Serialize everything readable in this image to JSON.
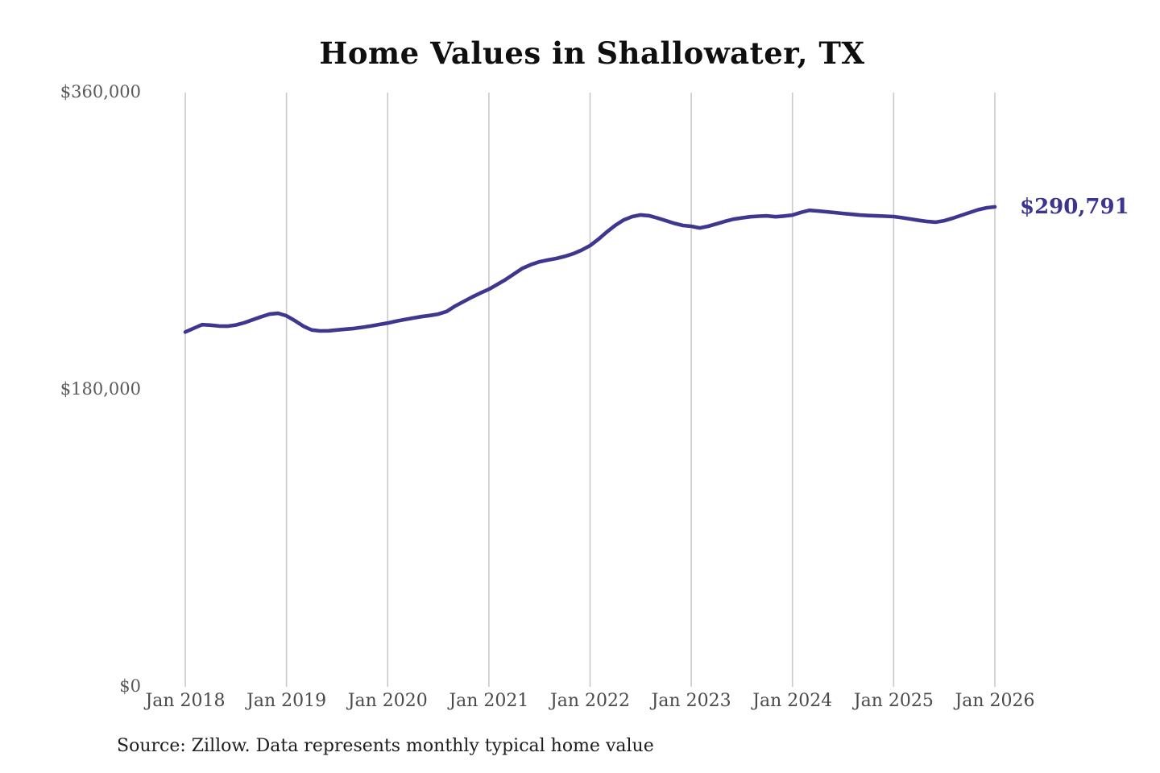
{
  "chart": {
    "title": "Home Values in Shallowater, TX",
    "latest_value_label": "$290,791",
    "source_note": "Source: Zillow. Data represents monthly typical home value",
    "colors": {
      "line": "#3e3790",
      "end_label": "#3b3490",
      "gridline": "#c9c9c9",
      "title": "#0f0f0f",
      "y_axis_label": "#5a5a5a",
      "x_axis_label": "#4a4a4a",
      "source_text": "#1d1d1d",
      "background": "#ffffff"
    }
  },
  "chart_data": {
    "type": "line",
    "title": "Home Values in Shallowater, TX",
    "xlabel": "",
    "ylabel": "",
    "ylim": [
      0,
      360000
    ],
    "grid": "vertical-only",
    "legend": "none",
    "source": "Zillow",
    "latest_point": {
      "month": "Jan 2026",
      "value": 290791,
      "label": "$290,791"
    },
    "y_ticks": [
      {
        "value": 360000,
        "label": "$360,000"
      },
      {
        "value": 180000,
        "label": "$180,000"
      },
      {
        "value": 0,
        "label": "$0"
      }
    ],
    "x_tick_labels": [
      "Jan 2018",
      "Jan 2019",
      "Jan 2020",
      "Jan 2021",
      "Jan 2022",
      "Jan 2023",
      "Jan 2024",
      "Jan 2025",
      "Jan 2026"
    ],
    "months": [
      "Jan 2018",
      "Feb 2018",
      "Mar 2018",
      "Apr 2018",
      "May 2018",
      "Jun 2018",
      "Jul 2018",
      "Aug 2018",
      "Sep 2018",
      "Oct 2018",
      "Nov 2018",
      "Dec 2018",
      "Jan 2019",
      "Feb 2019",
      "Mar 2019",
      "Apr 2019",
      "May 2019",
      "Jun 2019",
      "Jul 2019",
      "Aug 2019",
      "Sep 2019",
      "Oct 2019",
      "Nov 2019",
      "Dec 2019",
      "Jan 2020",
      "Feb 2020",
      "Mar 2020",
      "Apr 2020",
      "May 2020",
      "Jun 2020",
      "Jul 2020",
      "Aug 2020",
      "Sep 2020",
      "Oct 2020",
      "Nov 2020",
      "Dec 2020",
      "Jan 2021",
      "Feb 2021",
      "Mar 2021",
      "Apr 2021",
      "May 2021",
      "Jun 2021",
      "Jul 2021",
      "Aug 2021",
      "Sep 2021",
      "Oct 2021",
      "Nov 2021",
      "Dec 2021",
      "Jan 2022",
      "Feb 2022",
      "Mar 2022",
      "Apr 2022",
      "May 2022",
      "Jun 2022",
      "Jul 2022",
      "Aug 2022",
      "Sep 2022",
      "Oct 2022",
      "Nov 2022",
      "Dec 2022",
      "Jan 2023",
      "Feb 2023",
      "Mar 2023",
      "Apr 2023",
      "May 2023",
      "Jun 2023",
      "Jul 2023",
      "Aug 2023",
      "Sep 2023",
      "Oct 2023",
      "Nov 2023",
      "Dec 2023",
      "Jan 2024",
      "Feb 2024",
      "Mar 2024",
      "Apr 2024",
      "May 2024",
      "Jun 2024",
      "Jul 2024",
      "Aug 2024",
      "Sep 2024",
      "Oct 2024",
      "Nov 2024",
      "Dec 2024",
      "Jan 2025",
      "Feb 2025",
      "Mar 2025",
      "Apr 2025",
      "May 2025",
      "Jun 2025",
      "Jul 2025",
      "Aug 2025",
      "Sep 2025",
      "Oct 2025",
      "Nov 2025",
      "Dec 2025",
      "Jan 2026"
    ],
    "values": [
      215000,
      217200,
      219400,
      219100,
      218600,
      218500,
      219200,
      220600,
      222400,
      224200,
      225800,
      226300,
      224800,
      221800,
      218500,
      216200,
      215600,
      215700,
      216200,
      216700,
      217100,
      217800,
      218600,
      219500,
      220400,
      221500,
      222500,
      223400,
      224300,
      225000,
      225800,
      227400,
      230700,
      233400,
      236100,
      238600,
      240900,
      243800,
      246800,
      250200,
      253600,
      255800,
      257500,
      258600,
      259500,
      260800,
      262400,
      264600,
      267300,
      271200,
      275600,
      279600,
      282900,
      284900,
      285900,
      285400,
      284000,
      282400,
      280800,
      279500,
      279000,
      278000,
      279000,
      280500,
      282000,
      283300,
      284100,
      284800,
      285100,
      285300,
      284800,
      285200,
      285800,
      287400,
      288700,
      288300,
      287800,
      287300,
      286800,
      286300,
      285800,
      285500,
      285300,
      285100,
      284900,
      284200,
      283400,
      282600,
      281900,
      281500,
      282400,
      283900,
      285600,
      287300,
      289000,
      290200,
      290791
    ]
  }
}
